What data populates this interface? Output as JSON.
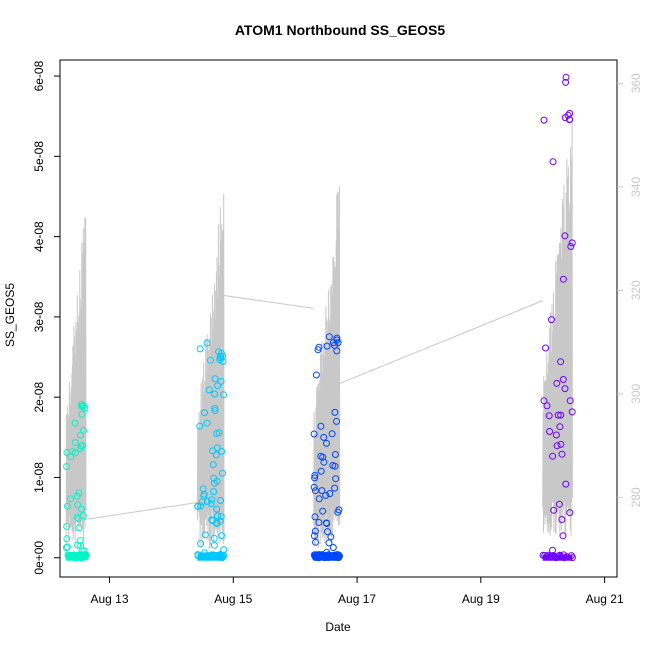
{
  "chart_data": {
    "type": "scatter",
    "title": "ATOM1 Northbound SS_GEOS5",
    "xlabel": "Date",
    "ylabel": "SS_GEOS5",
    "x_unit": "days since Aug 12 00:00",
    "xlim": [
      0.2,
      9.2
    ],
    "ylim": [
      -2.4e-09,
      6.2e-08
    ],
    "y2lim": [
      264.6,
      364.5
    ],
    "x_ticks": [
      {
        "value": 1,
        "label": "Aug 13"
      },
      {
        "value": 3,
        "label": "Aug 15"
      },
      {
        "value": 5,
        "label": "Aug 17"
      },
      {
        "value": 7,
        "label": "Aug 19"
      },
      {
        "value": 9,
        "label": "Aug 21"
      }
    ],
    "y_ticks": [
      {
        "value": 0,
        "label": "0e+00"
      },
      {
        "value": 1e-08,
        "label": "1e-08"
      },
      {
        "value": 2e-08,
        "label": "2e-08"
      },
      {
        "value": 3e-08,
        "label": "3e-08"
      },
      {
        "value": 4e-08,
        "label": "4e-08"
      },
      {
        "value": 5e-08,
        "label": "5e-08"
      },
      {
        "value": 6e-08,
        "label": "6e-08"
      }
    ],
    "y2_ticks": [
      {
        "value": 280,
        "label": "280"
      },
      {
        "value": 300,
        "label": "300"
      },
      {
        "value": 320,
        "label": "320"
      },
      {
        "value": 340,
        "label": "340"
      },
      {
        "value": 360,
        "label": "360"
      }
    ],
    "flights": [
      {
        "color": "#00f5c8",
        "x_start": 0.3,
        "x_end": 0.62,
        "peak": 1.93e-08,
        "n": 70
      },
      {
        "color": "#00c8ff",
        "x_start": 2.42,
        "x_end": 2.85,
        "peak": 2.7e-08,
        "n": 90
      },
      {
        "color": "#0046ff",
        "x_start": 4.3,
        "x_end": 4.72,
        "peak": 2.8e-08,
        "n": 100
      },
      {
        "color": "#7000ff",
        "x_start": 8.0,
        "x_end": 8.48,
        "peak": 6e-08,
        "n": 55
      }
    ],
    "secondary_line": {
      "color": "#c8c8c8",
      "connectors": [
        {
          "x": [
            0.48,
            2.42
          ],
          "y": [
            275.5,
            279.0
          ]
        },
        {
          "x": [
            2.85,
            4.3
          ],
          "y": [
            319.0,
            316.5
          ]
        },
        {
          "x": [
            4.72,
            8.0
          ],
          "y": [
            302.0,
            318.0
          ]
        }
      ],
      "segments": [
        {
          "x_start": 0.3,
          "x_end": 0.62,
          "low": 271,
          "high": 341
        },
        {
          "x_start": 2.42,
          "x_end": 2.85,
          "low": 270,
          "high": 345
        },
        {
          "x_start": 4.3,
          "x_end": 4.72,
          "low": 270,
          "high": 344
        },
        {
          "x_start": 8.0,
          "x_end": 8.48,
          "low": 272,
          "high": 360
        }
      ]
    }
  }
}
